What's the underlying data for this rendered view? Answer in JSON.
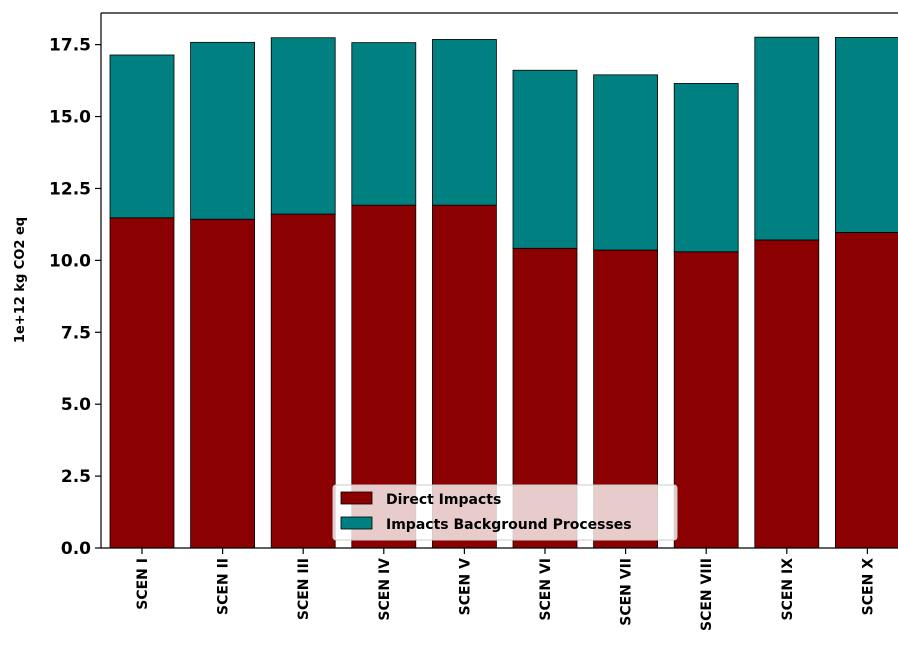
{
  "chart_data": {
    "type": "bar",
    "stacked": true,
    "categories": [
      "SCEN I",
      "SCEN II",
      "SCEN III",
      "SCEN IV",
      "SCEN V",
      "SCEN VI",
      "SCEN VII",
      "SCEN VIII",
      "SCEN IX",
      "SCEN X"
    ],
    "series": [
      {
        "name": "Direct Impacts",
        "color": "#8b0000",
        "values": [
          11.48,
          11.43,
          11.61,
          11.92,
          11.92,
          10.42,
          10.36,
          10.3,
          10.71,
          10.97
        ]
      },
      {
        "name": "Impacts Background Processes",
        "color": "#008080",
        "values": [
          5.66,
          6.15,
          6.13,
          5.65,
          5.76,
          6.19,
          6.09,
          5.85,
          7.05,
          6.78
        ]
      }
    ],
    "title": "",
    "xlabel": "",
    "ylabel": "1e+12 kg CO2 eq",
    "ylim": [
      0,
      18.6
    ],
    "yticks": [
      "0.0",
      "2.5",
      "5.0",
      "7.5",
      "10.0",
      "12.5",
      "15.0",
      "17.5"
    ],
    "grid": false,
    "legend_position": "bottom-center"
  }
}
